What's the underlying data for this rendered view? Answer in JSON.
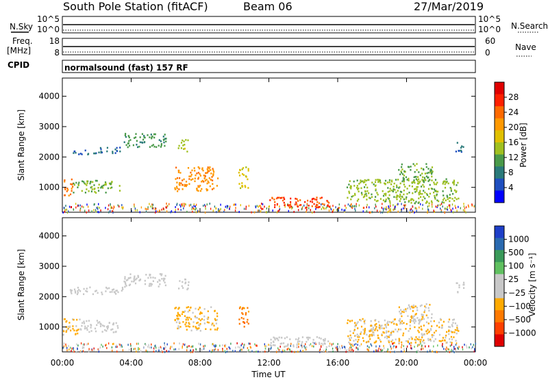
{
  "header": {
    "title": "South Pole Station (fitACF)",
    "beam": "Beam 06",
    "date": "27/Mar/2019"
  },
  "aux_panels": {
    "nsky_label": "N.Sky",
    "nsky_ticks": [
      "10^5",
      "10^0"
    ],
    "nsearch_label": "N.Search",
    "nsearch_ticks": [
      "10^5",
      "10^0"
    ],
    "freq_label": "Freq.",
    "freq_unit": "[MHz]",
    "freq_ticks": [
      "18",
      "8"
    ],
    "nave_label": "Nave",
    "nave_ticks": [
      "60",
      "0"
    ],
    "cpid_label": "CPID",
    "cpid_text": "normalsound (fast) 157 RF"
  },
  "x_axis": {
    "label": "Time UT",
    "ticks": [
      "00:00",
      "04:00",
      "08:00",
      "12:00",
      "16:00",
      "20:00",
      "00:00"
    ]
  },
  "colors": {
    "power_scale": [
      "#0000ff",
      "#1f4fbf",
      "#2a7a7a",
      "#4a9a4a",
      "#a0c020",
      "#e0c000",
      "#ff9900",
      "#ff6a00",
      "#ff2000",
      "#e00000"
    ],
    "velocity_scale": [
      "#e00000",
      "#ff4000",
      "#ff7a00",
      "#ffaa00",
      "#c8c8c8",
      "#c8c8c8",
      "#60c060",
      "#3a9a5a",
      "#2a6ab0",
      "#1e3fc8"
    ]
  },
  "chart_data": [
    {
      "type": "heatmap",
      "name": "power",
      "ylabel": "Slant Range [km]",
      "yticks": [
        "4000",
        "3000",
        "2000",
        "1000"
      ],
      "ylim": [
        180,
        4600
      ],
      "xlim": [
        0,
        24
      ],
      "colorbar": {
        "label": "Power [dB]",
        "ticks": [
          "28",
          "24",
          "20",
          "16",
          "12",
          "8",
          "4"
        ],
        "range": [
          0,
          30
        ]
      },
      "features": [
        {
          "t0": 0.0,
          "t1": 0.6,
          "r0": 750,
          "r1": 1300,
          "value": 22
        },
        {
          "t0": 0.6,
          "t1": 3.3,
          "r0": 850,
          "r1": 1250,
          "value": 12
        },
        {
          "t0": 0.4,
          "t1": 2.0,
          "r0": 2100,
          "r1": 2250,
          "value": 6
        },
        {
          "t0": 2.0,
          "t1": 3.5,
          "r0": 2150,
          "r1": 2350,
          "value": 7
        },
        {
          "t0": 3.5,
          "t1": 6.0,
          "r0": 2350,
          "r1": 2800,
          "value": 10
        },
        {
          "t0": 6.7,
          "t1": 7.3,
          "r0": 2200,
          "r1": 2600,
          "value": 14
        },
        {
          "t0": 6.5,
          "t1": 9.0,
          "r0": 900,
          "r1": 1700,
          "value": 20
        },
        {
          "t0": 10.2,
          "t1": 10.8,
          "r0": 1000,
          "r1": 1700,
          "value": 16
        },
        {
          "t0": 12.0,
          "t1": 15.5,
          "r0": 350,
          "r1": 700,
          "value": 24
        },
        {
          "t0": 16.5,
          "t1": 23.0,
          "r0": 500,
          "r1": 1300,
          "value": 13
        },
        {
          "t0": 19.5,
          "t1": 21.5,
          "r0": 1200,
          "r1": 1800,
          "value": 11
        },
        {
          "t0": 22.8,
          "t1": 23.3,
          "r0": 2150,
          "r1": 2500,
          "value": 6
        }
      ]
    },
    {
      "type": "heatmap",
      "name": "velocity",
      "ylabel": "Slant Range [km]",
      "yticks": [
        "4000",
        "3000",
        "2000",
        "1000"
      ],
      "ylim": [
        180,
        4600
      ],
      "xlim": [
        0,
        24
      ],
      "colorbar": {
        "label": "Velocity [m s⁻¹]",
        "ticks": [
          "1000",
          "500",
          "100",
          "25",
          "−25",
          "−100",
          "−500",
          "−1000"
        ],
        "range": [
          -1200,
          1200
        ]
      },
      "features": [
        {
          "t0": 0.0,
          "t1": 1.0,
          "r0": 750,
          "r1": 1300,
          "value": -300
        },
        {
          "t0": 1.0,
          "t1": 3.3,
          "r0": 850,
          "r1": 1250,
          "value": 60
        },
        {
          "t0": 0.4,
          "t1": 3.5,
          "r0": 2100,
          "r1": 2350,
          "value": 0
        },
        {
          "t0": 3.5,
          "t1": 6.0,
          "r0": 2350,
          "r1": 2800,
          "value": 0
        },
        {
          "t0": 6.7,
          "t1": 7.3,
          "r0": 2200,
          "r1": 2600,
          "value": 0
        },
        {
          "t0": 6.5,
          "t1": 9.0,
          "r0": 900,
          "r1": 1700,
          "value": -300
        },
        {
          "t0": 10.2,
          "t1": 10.8,
          "r0": 1000,
          "r1": 1700,
          "value": -600
        },
        {
          "t0": 12.0,
          "t1": 15.5,
          "r0": 350,
          "r1": 700,
          "value": 80
        },
        {
          "t0": 16.5,
          "t1": 23.0,
          "r0": 500,
          "r1": 1300,
          "value": -250
        },
        {
          "t0": 19.5,
          "t1": 21.5,
          "r0": 1200,
          "r1": 1800,
          "value": -200
        },
        {
          "t0": 22.8,
          "t1": 23.3,
          "r0": 2150,
          "r1": 2500,
          "value": 0
        }
      ]
    }
  ]
}
